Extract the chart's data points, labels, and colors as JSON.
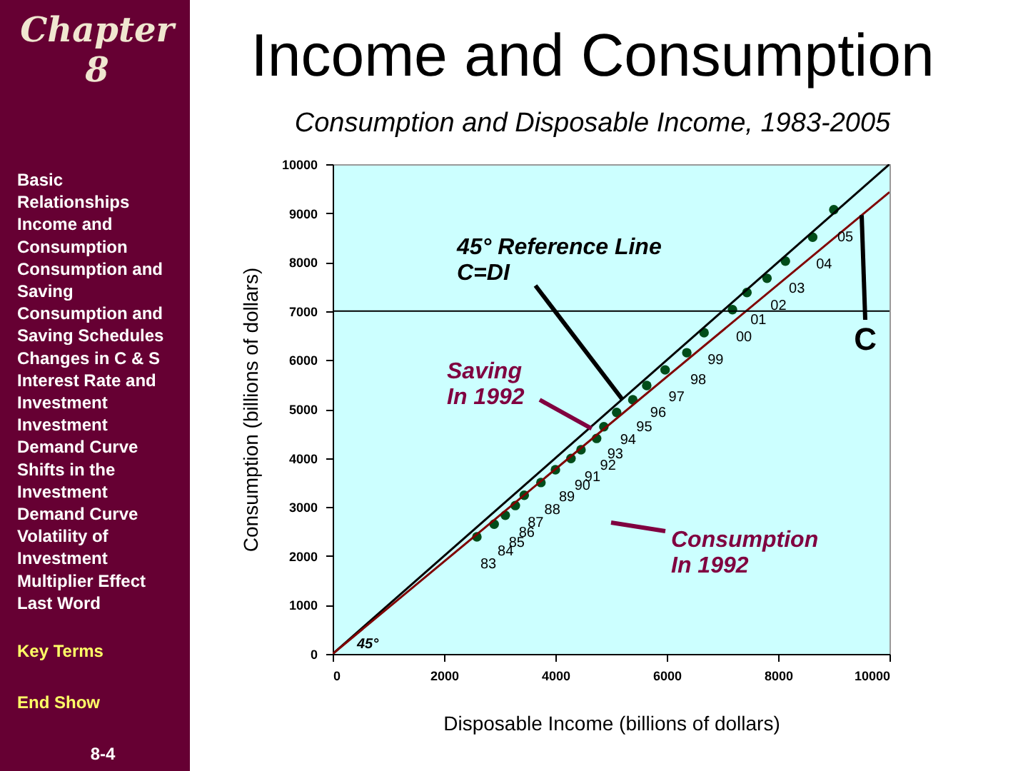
{
  "chart_data": {
    "type": "scatter",
    "title": "Income and Consumption",
    "subtitle": "Consumption and Disposable Income, 1983-2005",
    "xlabel": "Disposable Income (billions of dollars)",
    "ylabel": "Consumption (billions of dollars)",
    "xlim": [
      0,
      10000
    ],
    "ylim": [
      0,
      10000
    ],
    "xticks": [
      0,
      2000,
      4000,
      6000,
      8000,
      10000
    ],
    "yticks": [
      0,
      1000,
      2000,
      3000,
      4000,
      5000,
      6000,
      7000,
      8000,
      9000,
      10000
    ],
    "grid": false,
    "series": [
      {
        "color": "#004d1a",
        "marker": "circle",
        "x": [
          2590,
          2900,
          3100,
          3280,
          3440,
          3740,
          4000,
          4280,
          4460,
          4740,
          4870,
          5100,
          5390,
          5640,
          5970,
          6360,
          6670,
          7180,
          7440,
          7800,
          8130,
          8620,
          9000
        ],
        "values": [
          2390,
          2650,
          2830,
          3030,
          3240,
          3500,
          3760,
          3990,
          4170,
          4400,
          4640,
          4930,
          5190,
          5480,
          5800,
          6150,
          6560,
          7030,
          7380,
          7670,
          8020,
          8510,
          9070
        ]
      },
      {
        "type": "line",
        "marker": "none",
        "color": "#000000",
        "x": [
          0,
          10000
        ],
        "values": [
          0,
          10000
        ]
      },
      {
        "type": "line",
        "marker": "none",
        "color": "#800000",
        "x": [
          0,
          10000
        ],
        "values": [
          0,
          9430
        ]
      }
    ],
    "ref_lines": [
      {
        "axis": "y",
        "value": 7000,
        "color": "#000000"
      }
    ],
    "annotations": [
      "Chapter 8",
      "Basic\nRelationships",
      "Income and\nConsumption",
      "Consumption and\nSaving",
      "Consumption and\nSaving Schedules",
      "Changes in C & S",
      "Interest Rate and\nInvestment",
      "Investment\nDemand Curve",
      "Shifts in the\nInvestment\nDemand Curve",
      "Volatility of\nInvestment",
      "Multiplier Effect",
      "Last Word",
      "Key Terms",
      "End Show",
      "8-4",
      "Consumption\nIn 1992",
      "45°",
      {
        "text": "45° Reference Line\nC=DI",
        "x": 5200,
        "y": 5200
      },
      {
        "text": "Saving\nIn 1992",
        "x": 4650,
        "y": 4600
      },
      {
        "text": "C",
        "x": 9500,
        "y": 8960
      },
      {
        "text": "83",
        "x": 2590,
        "y": 2390
      },
      {
        "text": "84",
        "x": 2900,
        "y": 2650
      },
      {
        "text": "85",
        "x": 3100,
        "y": 2830
      },
      {
        "text": "86",
        "x": 3280,
        "y": 3030
      },
      {
        "text": "87",
        "x": 3440,
        "y": 3240
      },
      {
        "text": "88",
        "x": 3740,
        "y": 3500
      },
      {
        "text": "89",
        "x": 4000,
        "y": 3760
      },
      {
        "text": "90",
        "x": 4280,
        "y": 3990
      },
      {
        "text": "91",
        "x": 4460,
        "y": 4170
      },
      {
        "text": "92",
        "x": 4740,
        "y": 4400
      },
      {
        "text": "93",
        "x": 4870,
        "y": 4640
      },
      {
        "text": "94",
        "x": 5100,
        "y": 4930
      },
      {
        "text": "95",
        "x": 5390,
        "y": 5190
      },
      {
        "text": "96",
        "x": 5640,
        "y": 5480
      },
      {
        "text": "97",
        "x": 5970,
        "y": 5800
      },
      {
        "text": "98",
        "x": 6360,
        "y": 6150
      },
      {
        "text": "99",
        "x": 6670,
        "y": 6560
      },
      {
        "text": "00",
        "x": 7180,
        "y": 7030
      },
      {
        "text": "01",
        "x": 7440,
        "y": 7380
      },
      {
        "text": "02",
        "x": 7800,
        "y": 7670
      },
      {
        "text": "03",
        "x": 8130,
        "y": 8020
      },
      {
        "text": "04",
        "x": 8620,
        "y": 8510
      },
      {
        "text": "05",
        "x": 9000,
        "y": 9070
      }
    ]
  }
}
